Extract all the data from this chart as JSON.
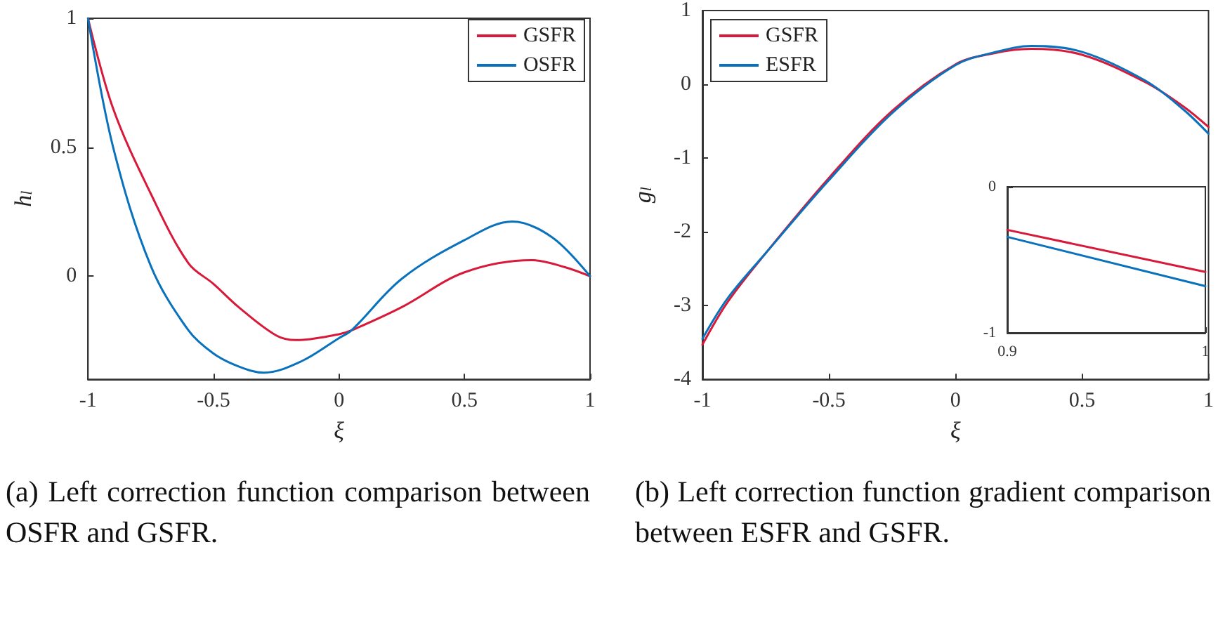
{
  "chart_data": [
    {
      "type": "line",
      "xlabel": "ξ",
      "ylabel": "h$_{l}$",
      "xlim": [
        -1,
        1
      ],
      "ylim": [
        -0.4,
        1
      ],
      "xticks": [
        -1,
        -0.5,
        0,
        0.5,
        1
      ],
      "yticks": [
        0,
        0.5,
        1
      ],
      "legend": "top right",
      "series": [
        {
          "name": "GSFR",
          "color": "#d7193a",
          "x": [
            -1,
            -0.9,
            -0.75,
            -0.6,
            -0.5,
            -0.4,
            -0.25,
            -0.17,
            0,
            0.05,
            0.25,
            0.5,
            0.77,
            0.9,
            1
          ],
          "values": [
            1,
            0.65,
            0.32,
            0.05,
            -0.03,
            -0.12,
            -0.23,
            -0.248,
            -0.225,
            -0.21,
            -0.12,
            0.015,
            0.062,
            0.035,
            0
          ]
        },
        {
          "name": "OSFR",
          "color": "#0a72bd",
          "x": [
            -1,
            -0.9,
            -0.75,
            -0.6,
            -0.5,
            -0.4,
            -0.3,
            -0.15,
            0,
            0.05,
            0.25,
            0.5,
            0.69,
            0.85,
            1
          ],
          "values": [
            1,
            0.5,
            0.04,
            -0.21,
            -0.3,
            -0.35,
            -0.374,
            -0.33,
            -0.24,
            -0.21,
            -0.01,
            0.14,
            0.212,
            0.15,
            0
          ]
        }
      ],
      "annotations": [
        "(a) Left correction function comparison between OSFR and GSFR."
      ]
    },
    {
      "type": "line",
      "xlabel": "ξ",
      "ylabel": "g$_{l}$",
      "xlim": [
        -1,
        1
      ],
      "ylim": [
        -4,
        1
      ],
      "xticks": [
        -1,
        -0.5,
        0,
        0.5,
        1
      ],
      "yticks": [
        -4,
        -3,
        -2,
        -1,
        0,
        1
      ],
      "legend": "top left",
      "x": [
        -1,
        -0.9,
        -0.75,
        -0.5,
        -0.25,
        0,
        0.15,
        0.3,
        0.5,
        0.75,
        0.9,
        1
      ],
      "series": [
        {
          "name": "GSFR",
          "color": "#d7193a",
          "values": [
            -3.53,
            -2.95,
            -2.29,
            -1.27,
            -0.36,
            0.27,
            0.42,
            0.48,
            0.4,
            0.03,
            -0.3,
            -0.58
          ]
        },
        {
          "name": "ESFR",
          "color": "#0a72bd",
          "values": [
            -3.45,
            -2.9,
            -2.29,
            -1.3,
            -0.39,
            0.26,
            0.43,
            0.52,
            0.44,
            0.05,
            -0.34,
            -0.67
          ]
        }
      ],
      "annotations": [
        "(b) Left correction function gradient comparison between ESFR and GSFR."
      ]
    },
    {
      "type": "line",
      "xlim": [
        0.9,
        1
      ],
      "ylim": [
        -1,
        0
      ],
      "xticks": [
        0.9,
        1
      ],
      "yticks": [
        -1,
        0
      ],
      "x": [
        0.9,
        1
      ],
      "series": [
        {
          "color": "#d7193a",
          "values": [
            -0.295,
            -0.583
          ]
        },
        {
          "color": "#0a72bd",
          "values": [
            -0.343,
            -0.68
          ]
        }
      ]
    }
  ]
}
